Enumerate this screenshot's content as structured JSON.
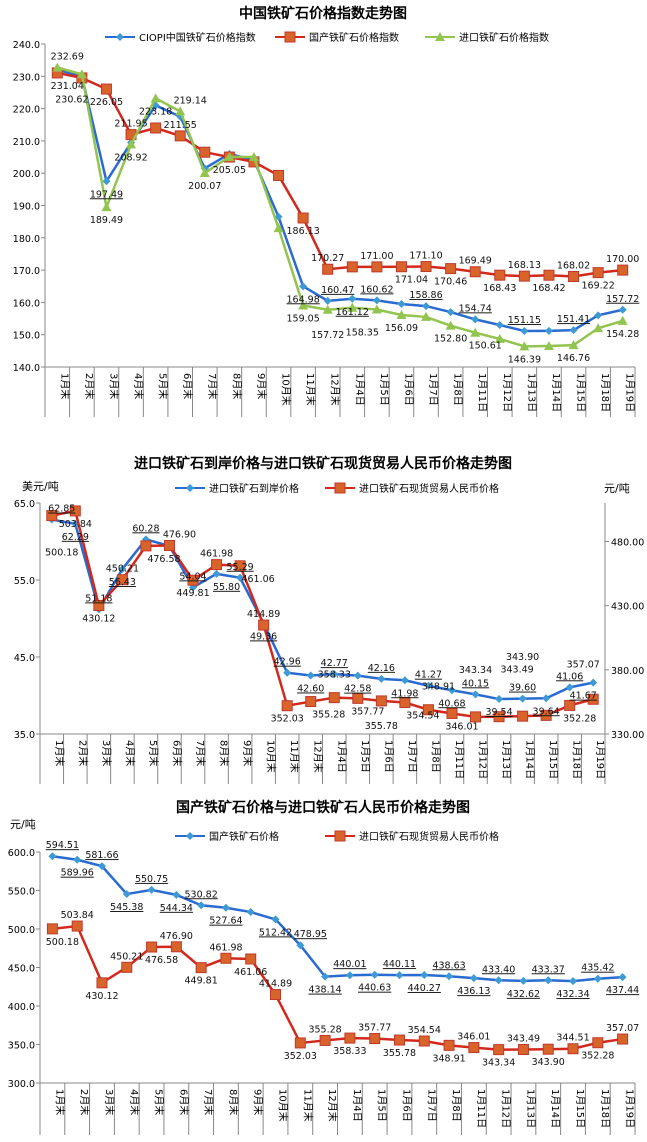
{
  "chart_data": [
    {
      "type": "line",
      "title": "中国铁矿石价格指数走势图",
      "categories": [
        "1月末",
        "2月末",
        "3月末",
        "4月末",
        "5月末",
        "6月末",
        "7月末",
        "8月末",
        "9月末",
        "10月末",
        "11月末",
        "12月末",
        "1月4日",
        "1月5日",
        "1月6日",
        "1月7日",
        "1月8日",
        "1月11日",
        "1月12日",
        "1月13日",
        "1月14日",
        "1月15日",
        "1月18日",
        "1月19日"
      ],
      "ylim": [
        140,
        240
      ],
      "ystep": 10,
      "ydecimals": 1,
      "grid": false,
      "legend": "top",
      "series": [
        {
          "name": "CIOPI中国铁矿石价格指数",
          "color": "#2a6bd1",
          "marker": "diamond",
          "markerColor": "#3e9ad6",
          "values": [
            232.0,
            230.0,
            197.49,
            209.5,
            221.0,
            217.5,
            201.5,
            206.0,
            204.0,
            186.5,
            164.98,
            160.47,
            161.12,
            160.62,
            159.5,
            158.86,
            157.0,
            154.74,
            153.0,
            151.15,
            151.2,
            151.41,
            156.0,
            157.72
          ],
          "labels": [
            null,
            null,
            "197.49",
            null,
            null,
            null,
            null,
            null,
            null,
            null,
            "164.98",
            "160.47",
            "161.12",
            "160.62",
            null,
            "158.86",
            null,
            "154.74",
            null,
            "151.15",
            null,
            "151.41",
            null,
            "157.72"
          ]
        },
        {
          "name": "国产铁矿石价格指数",
          "color": "#d2281d",
          "marker": "square",
          "markerColor": "#d9642b",
          "values": [
            231.04,
            229.5,
            226.05,
            211.95,
            214.0,
            211.55,
            206.5,
            205.0,
            203.5,
            199.3,
            186.13,
            170.27,
            171.0,
            171.0,
            171.04,
            171.1,
            170.46,
            169.49,
            168.43,
            168.13,
            168.42,
            168.02,
            169.22,
            170.0
          ],
          "labels": [
            "231.04",
            null,
            "226.05",
            "211.95",
            null,
            "211.55",
            null,
            null,
            null,
            null,
            "186.13",
            "170.27",
            null,
            "171.00",
            "171.04",
            "171.10",
            "170.46",
            "169.49",
            "168.43",
            "168.13",
            "168.42",
            "168.02",
            "169.22",
            "170.00"
          ]
        },
        {
          "name": "进口铁矿石价格指数",
          "color": "#92c450",
          "marker": "triangle",
          "markerColor": "#92c450",
          "values": [
            232.69,
            230.62,
            189.49,
            208.92,
            223.18,
            219.14,
            200.07,
            205.05,
            205.0,
            183.0,
            159.05,
            157.72,
            158.35,
            157.8,
            156.09,
            155.5,
            152.8,
            150.61,
            148.7,
            146.39,
            146.5,
            146.76,
            152.0,
            154.28
          ],
          "labels": [
            "232.69",
            "230.62",
            "189.49",
            "208.92",
            "223.18",
            "219.14",
            "200.07",
            "205.05",
            null,
            null,
            "159.05",
            "157.72",
            "158.35",
            null,
            "156.09",
            null,
            "152.80",
            "150.61",
            null,
            "146.39",
            null,
            "146.76",
            null,
            "154.28"
          ]
        }
      ]
    },
    {
      "type": "line",
      "title": "进口铁矿石到岸价格与进口铁矿石现货贸易人民币价格走势图",
      "ylabel": "美元/吨",
      "y2label": "元/吨",
      "categories": [
        "1月末",
        "2月末",
        "3月末",
        "4月末",
        "5月末",
        "6月末",
        "7月末",
        "8月末",
        "9月末",
        "10月末",
        "11月末",
        "12月末",
        "1月4日",
        "1月5日",
        "1月6日",
        "1月7日",
        "1月8日",
        "1月11日",
        "1月12日",
        "1月13日",
        "1月14日",
        "1月15日",
        "1月18日",
        "1月19日"
      ],
      "ylim": [
        35,
        65
      ],
      "ystep": 10,
      "ydecimals": 1,
      "y2lim": [
        330,
        510
      ],
      "y2ticks": [
        330,
        380,
        430,
        480
      ],
      "y2decimals": 2,
      "grid": false,
      "legend": "top",
      "series": [
        {
          "name": "进口铁矿石到岸价格",
          "axis": "left",
          "color": "#2a6bd1",
          "marker": "diamond",
          "markerColor": "#3e9ad6",
          "values": [
            62.85,
            62.29,
            51.18,
            56.43,
            60.28,
            59.4,
            54.04,
            55.8,
            55.29,
            49.36,
            42.96,
            42.6,
            42.77,
            42.58,
            42.16,
            41.98,
            41.27,
            40.68,
            40.15,
            39.54,
            39.6,
            39.64,
            41.06,
            41.67
          ],
          "labels": [
            "62.85",
            "62.29",
            "51.18",
            "56.43",
            "60.28",
            null,
            "54.04",
            "55.80",
            "55.29",
            "49.36",
            "42.96",
            "42.60",
            "42.77",
            "42.58",
            "42.16",
            "41.98",
            "41.27",
            "40.68",
            "40.15",
            "39.54",
            "39.60",
            "39.64",
            "41.06",
            "41.67"
          ]
        },
        {
          "name": "进口铁矿石现货贸易人民币价格",
          "axis": "right",
          "color": "#d2281d",
          "marker": "square",
          "markerColor": "#d9642b",
          "values": [
            500.18,
            503.84,
            430.12,
            450.21,
            476.58,
            476.9,
            449.81,
            461.98,
            461.06,
            414.89,
            352.03,
            355.28,
            358.33,
            357.77,
            355.78,
            354.54,
            348.91,
            346.01,
            343.34,
            343.49,
            343.9,
            344.51,
            352.28,
            357.07
          ],
          "labels": [
            "500.18",
            "503.84",
            "430.12",
            "450.21",
            "476.58",
            "476.90",
            "449.81",
            "461.98",
            "461.06",
            "414.89",
            "352.03",
            "355.28",
            "358.33",
            "357.77",
            "355.78",
            "354.54",
            "348.91",
            "346.01",
            "343.34",
            "343.49",
            "343.90",
            null,
            "352.28",
            "357.07"
          ]
        }
      ]
    },
    {
      "type": "line",
      "title": "国产铁矿石价格与进口铁矿石人民币价格走势图",
      "ylabel": "元/吨",
      "categories": [
        "1月末",
        "2月末",
        "3月末",
        "4月末",
        "5月末",
        "6月末",
        "7月末",
        "8月末",
        "9月末",
        "10月末",
        "11月末",
        "12月末",
        "1月4日",
        "1月5日",
        "1月6日",
        "1月7日",
        "1月8日",
        "1月11日",
        "1月12日",
        "1月13日",
        "1月14日",
        "1月15日",
        "1月18日",
        "1月19日"
      ],
      "ylim": [
        300,
        600
      ],
      "ystep": 50,
      "ydecimals": 1,
      "grid": false,
      "legend": "top",
      "series": [
        {
          "name": "国产铁矿石价格",
          "color": "#2a6bd1",
          "marker": "diamond",
          "markerColor": "#3e9ad6",
          "values": [
            594.51,
            589.96,
            581.66,
            545.38,
            550.75,
            544.34,
            530.82,
            527.64,
            522.0,
            512.42,
            478.95,
            438.14,
            440.01,
            440.63,
            440.11,
            440.27,
            438.63,
            436.13,
            433.4,
            432.62,
            433.37,
            432.34,
            435.42,
            437.44
          ],
          "labels": [
            "594.51",
            "589.96",
            "581.66",
            "545.38",
            "550.75",
            "544.34",
            "530.82",
            "527.64",
            null,
            "512.42",
            "478.95",
            "438.14",
            "440.01",
            "440.63",
            "440.11",
            "440.27",
            "438.63",
            "436.13",
            "433.40",
            "432.62",
            "433.37",
            "432.34",
            "435.42",
            "437.44"
          ]
        },
        {
          "name": "进口铁矿石现货贸易人民币价格",
          "color": "#d2281d",
          "marker": "square",
          "markerColor": "#d9642b",
          "values": [
            500.18,
            503.84,
            430.12,
            450.21,
            476.58,
            476.9,
            449.81,
            461.98,
            461.06,
            414.89,
            352.03,
            355.28,
            358.33,
            357.77,
            355.78,
            354.54,
            348.91,
            346.01,
            343.34,
            343.49,
            343.9,
            344.51,
            352.28,
            357.07
          ],
          "labels": [
            "500.18",
            "503.84",
            "430.12",
            "450.21",
            "476.58",
            "476.90",
            "449.81",
            "461.98",
            "461.06",
            "414.89",
            "352.03",
            "355.28",
            "358.33",
            "357.77",
            "355.78",
            "354.54",
            "348.91",
            "346.01",
            "343.34",
            "343.49",
            "343.90",
            "344.51",
            "352.28",
            "357.07"
          ]
        }
      ]
    }
  ]
}
